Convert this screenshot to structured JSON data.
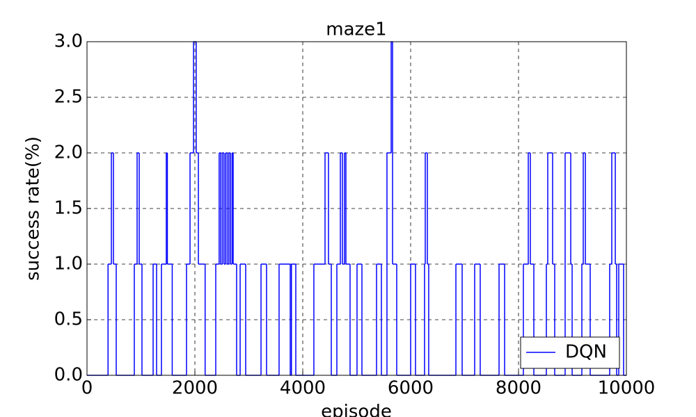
{
  "chart_data": {
    "type": "step",
    "title": "maze1",
    "xlabel": "episode",
    "ylabel": "success rate(%)",
    "x": [
      0,
      390,
      452,
      490,
      542,
      877,
      929,
      968,
      1019,
      1226,
      1290,
      1380,
      1470,
      1490,
      1580,
      1845,
      1910,
      1975,
      2025,
      2065,
      2190,
      2387,
      2450,
      2480,
      2510,
      2540,
      2570,
      2600,
      2630,
      2660,
      2690,
      2710,
      2774,
      2839,
      2942,
      3226,
      3329,
      3561,
      3768,
      3790,
      3871,
      4206,
      4413,
      4477,
      4529,
      4632,
      4697,
      4735,
      4774,
      4800,
      4877,
      5006,
      5097,
      5368,
      5458,
      5561,
      5639,
      5665,
      5742,
      6000,
      6090,
      6258,
      6271,
      6310,
      6335,
      6839,
      6955,
      7187,
      7290,
      7639,
      7742,
      8090,
      8181,
      8219,
      8284,
      8516,
      8542,
      8632,
      8671,
      8864,
      8968,
      8994,
      9174,
      9200,
      9239,
      9329,
      9690,
      9729,
      9794,
      9819,
      9858,
      9948
    ],
    "series": [
      {
        "name": "DQN",
        "color": "#0000ff",
        "values": [
          0,
          1,
          2,
          1,
          0,
          1,
          2,
          1,
          0,
          1,
          0,
          1,
          2,
          1,
          0,
          1,
          2,
          3,
          2,
          1,
          0,
          1,
          2,
          1,
          2,
          1,
          2,
          1,
          2,
          1,
          2,
          1,
          0,
          1,
          0,
          1,
          0,
          1,
          0,
          1,
          0,
          1,
          2,
          1,
          0,
          1,
          2,
          1,
          2,
          1,
          0,
          1,
          0,
          1,
          0,
          2,
          3,
          1,
          0,
          1,
          0,
          1,
          2,
          1,
          0,
          1,
          0,
          1,
          0,
          1,
          0,
          1,
          2,
          1,
          0,
          1,
          2,
          1,
          0,
          2,
          1,
          0,
          1,
          2,
          1,
          0,
          1,
          2,
          1,
          0,
          1,
          0
        ]
      }
    ],
    "xlim": [
      0,
      10000
    ],
    "xticks": [
      0,
      2000,
      4000,
      6000,
      8000,
      10000
    ],
    "ylim": [
      0,
      3
    ],
    "yticks": [
      {
        "value": 0,
        "label": "0.0"
      },
      {
        "value": 0.5,
        "label": "0.5"
      },
      {
        "value": 1,
        "label": "1.0"
      },
      {
        "value": 1.5,
        "label": "1.5"
      },
      {
        "value": 2,
        "label": "2.0"
      },
      {
        "value": 2.5,
        "label": "2.5"
      },
      {
        "value": 3,
        "label": "3.0"
      }
    ],
    "grid": true,
    "legend": "lower right"
  }
}
